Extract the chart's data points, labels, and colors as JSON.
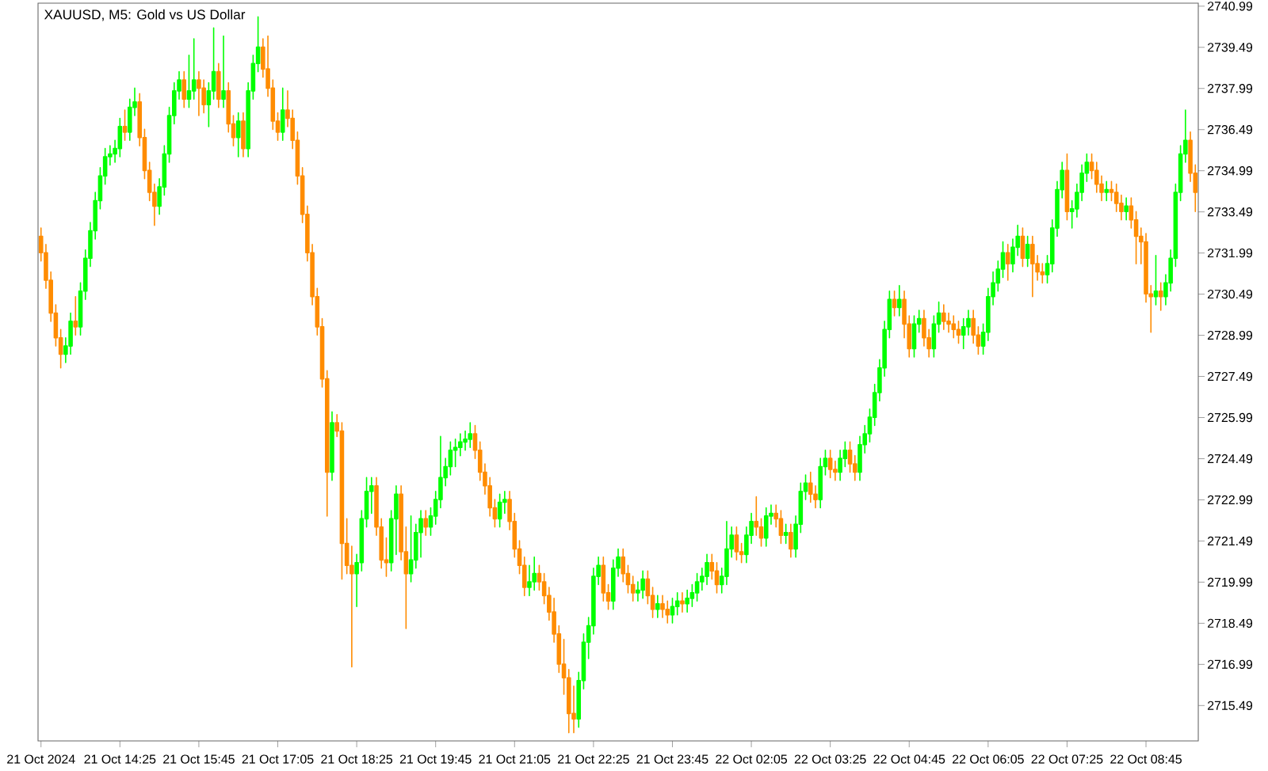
{
  "chart_data": {
    "type": "candlestick",
    "title": "XAUUSD, M5:  Gold vs US Dollar",
    "categories": [
      "21 Oct 2024",
      null,
      null,
      null,
      null,
      null,
      null,
      null,
      null,
      null,
      null,
      null,
      null,
      null,
      null,
      null,
      "21 Oct 14:25",
      null,
      null,
      null,
      null,
      null,
      null,
      null,
      null,
      null,
      null,
      null,
      null,
      null,
      null,
      null,
      "21 Oct 15:45",
      null,
      null,
      null,
      null,
      null,
      null,
      null,
      null,
      null,
      null,
      null,
      null,
      null,
      null,
      null,
      "21 Oct 17:05",
      null,
      null,
      null,
      null,
      null,
      null,
      null,
      null,
      null,
      null,
      null,
      null,
      null,
      null,
      null,
      "21 Oct 18:25",
      null,
      null,
      null,
      null,
      null,
      null,
      null,
      null,
      null,
      null,
      null,
      null,
      null,
      null,
      null,
      "21 Oct 19:45",
      null,
      null,
      null,
      null,
      null,
      null,
      null,
      null,
      null,
      null,
      null,
      null,
      null,
      null,
      null,
      "21 Oct 21:05",
      null,
      null,
      null,
      null,
      null,
      null,
      null,
      null,
      null,
      null,
      null,
      null,
      null,
      null,
      null,
      "21 Oct 22:25",
      null,
      null,
      null,
      null,
      null,
      null,
      null,
      null,
      null,
      null,
      null,
      null,
      null,
      null,
      null,
      "21 Oct 23:45",
      null,
      null,
      null,
      null,
      null,
      null,
      null,
      null,
      null,
      null,
      null,
      null,
      null,
      null,
      null,
      "22 Oct 02:05",
      null,
      null,
      null,
      null,
      null,
      null,
      null,
      null,
      null,
      null,
      null,
      null,
      null,
      null,
      null,
      "22 Oct 03:25",
      null,
      null,
      null,
      null,
      null,
      null,
      null,
      null,
      null,
      null,
      null,
      null,
      null,
      null,
      null,
      "22 Oct 04:45",
      null,
      null,
      null,
      null,
      null,
      null,
      null,
      null,
      null,
      null,
      null,
      null,
      null,
      null,
      null,
      "22 Oct 06:05",
      null,
      null,
      null,
      null,
      null,
      null,
      null,
      null,
      null,
      null,
      null,
      null,
      null,
      null,
      null,
      "22 Oct 07:25",
      null,
      null,
      null,
      null,
      null,
      null,
      null,
      null,
      null,
      null,
      null,
      null,
      null,
      null,
      null,
      "22 Oct 08:45",
      null,
      null,
      null,
      null,
      null,
      null,
      null,
      null,
      null,
      null
    ],
    "ylim": [
      2714.2,
      2741.1
    ],
    "yticks": [
      2715.49,
      2716.99,
      2718.49,
      2719.99,
      2721.49,
      2722.99,
      2724.49,
      2725.99,
      2727.49,
      2728.99,
      2730.49,
      2731.99,
      2733.49,
      2734.99,
      2736.49,
      2737.99,
      2739.49,
      2740.99
    ],
    "ohlc": [
      [
        2732.6,
        2732.9,
        2731.7,
        2732.0
      ],
      [
        2732.0,
        2732.3,
        2730.7,
        2731.0
      ],
      [
        2731.0,
        2731.3,
        2729.5,
        2729.8
      ],
      [
        2729.8,
        2730.1,
        2728.6,
        2728.9
      ],
      [
        2728.9,
        2729.2,
        2727.8,
        2728.3
      ],
      [
        2728.3,
        2728.9,
        2728.0,
        2728.6
      ],
      [
        2728.6,
        2729.8,
        2728.3,
        2729.5
      ],
      [
        2729.5,
        2730.4,
        2729.0,
        2729.3
      ],
      [
        2729.3,
        2730.9,
        2729.0,
        2730.6
      ],
      [
        2730.6,
        2732.1,
        2730.3,
        2731.8
      ],
      [
        2731.8,
        2733.1,
        2731.5,
        2732.8
      ],
      [
        2732.8,
        2734.2,
        2732.5,
        2733.9
      ],
      [
        2733.9,
        2735.1,
        2733.6,
        2734.8
      ],
      [
        2734.8,
        2735.8,
        2734.5,
        2735.5
      ],
      [
        2735.5,
        2735.9,
        2735.2,
        2735.6
      ],
      [
        2735.6,
        2736.1,
        2735.3,
        2735.8
      ],
      [
        2735.8,
        2736.9,
        2735.5,
        2736.6
      ],
      [
        2736.6,
        2737.2,
        2736.1,
        2736.4
      ],
      [
        2736.4,
        2737.6,
        2736.1,
        2737.3
      ],
      [
        2737.3,
        2738.0,
        2737.0,
        2737.5
      ],
      [
        2737.5,
        2737.8,
        2735.9,
        2736.2
      ],
      [
        2736.2,
        2736.5,
        2734.7,
        2735.0
      ],
      [
        2735.0,
        2735.3,
        2733.9,
        2734.2
      ],
      [
        2734.2,
        2734.5,
        2733.0,
        2733.7
      ],
      [
        2733.7,
        2734.7,
        2733.4,
        2734.4
      ],
      [
        2734.4,
        2735.9,
        2734.1,
        2735.6
      ],
      [
        2735.6,
        2737.3,
        2735.3,
        2737.0
      ],
      [
        2737.0,
        2738.2,
        2736.7,
        2737.9
      ],
      [
        2737.9,
        2738.6,
        2737.6,
        2738.3
      ],
      [
        2738.3,
        2738.6,
        2737.3,
        2737.6
      ],
      [
        2737.6,
        2739.2,
        2737.3,
        2737.9
      ],
      [
        2737.9,
        2739.8,
        2737.6,
        2738.3
      ],
      [
        2738.3,
        2738.6,
        2737.0,
        2738.0
      ],
      [
        2738.0,
        2738.3,
        2737.1,
        2737.4
      ],
      [
        2737.4,
        2738.2,
        2736.6,
        2737.9
      ],
      [
        2737.9,
        2740.2,
        2737.6,
        2738.6
      ],
      [
        2738.6,
        2738.9,
        2737.3,
        2737.6
      ],
      [
        2737.6,
        2739.9,
        2737.3,
        2737.9
      ],
      [
        2737.9,
        2738.2,
        2736.4,
        2736.7
      ],
      [
        2736.7,
        2737.0,
        2735.9,
        2736.2
      ],
      [
        2736.2,
        2737.1,
        2735.5,
        2736.8
      ],
      [
        2736.8,
        2737.1,
        2735.5,
        2735.8
      ],
      [
        2735.8,
        2738.2,
        2735.5,
        2737.9
      ],
      [
        2737.9,
        2739.2,
        2737.6,
        2738.9
      ],
      [
        2738.9,
        2740.6,
        2738.6,
        2739.5
      ],
      [
        2739.5,
        2739.8,
        2738.4,
        2738.7
      ],
      [
        2738.7,
        2739.9,
        2737.7,
        2738.0
      ],
      [
        2738.0,
        2738.3,
        2736.5,
        2736.8
      ],
      [
        2736.8,
        2737.1,
        2736.1,
        2736.4
      ],
      [
        2736.4,
        2738.0,
        2736.1,
        2737.2
      ],
      [
        2737.2,
        2737.9,
        2736.6,
        2736.9
      ],
      [
        2736.9,
        2737.2,
        2735.8,
        2736.1
      ],
      [
        2736.1,
        2736.4,
        2734.5,
        2734.8
      ],
      [
        2734.8,
        2735.1,
        2733.1,
        2733.4
      ],
      [
        2733.4,
        2733.7,
        2731.7,
        2732.0
      ],
      [
        2732.0,
        2732.3,
        2730.1,
        2730.4
      ],
      [
        2730.4,
        2730.7,
        2729.0,
        2729.3
      ],
      [
        2729.3,
        2729.6,
        2727.1,
        2727.4
      ],
      [
        2727.4,
        2727.7,
        2722.4,
        2724.0
      ],
      [
        2724.0,
        2726.2,
        2723.7,
        2725.8
      ],
      [
        2725.8,
        2726.1,
        2725.3,
        2725.5
      ],
      [
        2725.5,
        2725.8,
        2720.1,
        2721.4
      ],
      [
        2721.4,
        2722.3,
        2720.3,
        2720.6
      ],
      [
        2720.6,
        2721.3,
        2716.9,
        2720.3
      ],
      [
        2720.3,
        2721.0,
        2719.1,
        2720.7
      ],
      [
        2720.7,
        2722.6,
        2720.4,
        2722.3
      ],
      [
        2722.3,
        2723.8,
        2722.0,
        2723.3
      ],
      [
        2723.3,
        2723.8,
        2722.5,
        2723.5
      ],
      [
        2723.5,
        2723.8,
        2721.7,
        2722.0
      ],
      [
        2722.0,
        2722.3,
        2720.5,
        2720.8
      ],
      [
        2720.8,
        2721.6,
        2720.2,
        2720.7
      ],
      [
        2720.7,
        2722.6,
        2720.4,
        2722.3
      ],
      [
        2722.3,
        2723.5,
        2721.0,
        2723.2
      ],
      [
        2723.2,
        2723.5,
        2720.8,
        2721.1
      ],
      [
        2721.1,
        2722.0,
        2718.3,
        2720.3
      ],
      [
        2720.3,
        2722.4,
        2720.0,
        2720.8
      ],
      [
        2720.8,
        2722.1,
        2720.5,
        2721.8
      ],
      [
        2721.8,
        2722.6,
        2720.9,
        2722.3
      ],
      [
        2722.3,
        2722.6,
        2721.7,
        2722.0
      ],
      [
        2722.0,
        2722.7,
        2721.7,
        2722.4
      ],
      [
        2722.4,
        2723.3,
        2722.1,
        2723.0
      ],
      [
        2723.0,
        2725.3,
        2722.7,
        2723.8
      ],
      [
        2723.8,
        2724.5,
        2723.5,
        2724.2
      ],
      [
        2724.2,
        2725.1,
        2723.9,
        2724.8
      ],
      [
        2724.8,
        2725.2,
        2724.2,
        2724.9
      ],
      [
        2724.9,
        2725.4,
        2724.6,
        2725.1
      ],
      [
        2725.1,
        2725.5,
        2724.8,
        2725.2
      ],
      [
        2725.2,
        2725.8,
        2724.9,
        2725.4
      ],
      [
        2725.4,
        2725.7,
        2724.5,
        2724.8
      ],
      [
        2724.8,
        2725.1,
        2723.7,
        2724.0
      ],
      [
        2724.0,
        2724.3,
        2723.2,
        2723.5
      ],
      [
        2723.5,
        2723.8,
        2722.4,
        2722.7
      ],
      [
        2722.7,
        2723.0,
        2722.0,
        2722.3
      ],
      [
        2722.3,
        2723.2,
        2722.0,
        2722.9
      ],
      [
        2722.9,
        2723.3,
        2722.5,
        2723.0
      ],
      [
        2723.0,
        2723.3,
        2721.9,
        2722.2
      ],
      [
        2722.2,
        2722.5,
        2720.9,
        2721.2
      ],
      [
        2721.2,
        2721.5,
        2720.3,
        2720.6
      ],
      [
        2720.6,
        2720.9,
        2719.5,
        2719.8
      ],
      [
        2719.8,
        2720.6,
        2719.5,
        2720.0
      ],
      [
        2720.0,
        2720.9,
        2719.7,
        2720.3
      ],
      [
        2720.3,
        2720.6,
        2719.7,
        2720.0
      ],
      [
        2720.0,
        2720.3,
        2719.2,
        2719.5
      ],
      [
        2719.5,
        2719.8,
        2718.6,
        2718.9
      ],
      [
        2718.9,
        2719.4,
        2717.8,
        2718.1
      ],
      [
        2718.1,
        2718.4,
        2716.7,
        2717.0
      ],
      [
        2717.0,
        2717.9,
        2715.9,
        2716.5
      ],
      [
        2716.5,
        2716.8,
        2714.5,
        2715.2
      ],
      [
        2715.2,
        2716.2,
        2714.5,
        2715.0
      ],
      [
        2715.0,
        2716.7,
        2714.7,
        2716.4
      ],
      [
        2716.4,
        2718.1,
        2716.1,
        2717.8
      ],
      [
        2717.8,
        2718.7,
        2717.2,
        2718.4
      ],
      [
        2718.4,
        2720.5,
        2718.1,
        2720.2
      ],
      [
        2720.2,
        2720.9,
        2719.9,
        2720.6
      ],
      [
        2720.6,
        2720.9,
        2719.3,
        2719.6
      ],
      [
        2719.6,
        2719.9,
        2719.0,
        2719.3
      ],
      [
        2719.3,
        2720.8,
        2719.0,
        2720.5
      ],
      [
        2720.5,
        2721.2,
        2720.2,
        2720.9
      ],
      [
        2720.9,
        2721.2,
        2720.0,
        2720.3
      ],
      [
        2720.3,
        2720.6,
        2719.6,
        2719.9
      ],
      [
        2719.9,
        2720.2,
        2719.3,
        2719.6
      ],
      [
        2719.6,
        2720.0,
        2719.3,
        2719.7
      ],
      [
        2719.7,
        2720.4,
        2719.4,
        2720.1
      ],
      [
        2720.1,
        2720.4,
        2719.2,
        2719.5
      ],
      [
        2719.5,
        2719.8,
        2718.7,
        2719.0
      ],
      [
        2719.0,
        2719.5,
        2718.7,
        2719.2
      ],
      [
        2719.2,
        2719.5,
        2718.7,
        2719.0
      ],
      [
        2719.0,
        2719.3,
        2718.5,
        2718.8
      ],
      [
        2718.8,
        2719.4,
        2718.5,
        2719.1
      ],
      [
        2719.1,
        2719.6,
        2718.8,
        2719.3
      ],
      [
        2719.3,
        2719.6,
        2718.9,
        2719.2
      ],
      [
        2719.2,
        2719.7,
        2718.9,
        2719.4
      ],
      [
        2719.4,
        2719.9,
        2719.1,
        2719.6
      ],
      [
        2719.6,
        2720.3,
        2719.3,
        2720.0
      ],
      [
        2720.0,
        2720.5,
        2719.7,
        2720.2
      ],
      [
        2720.2,
        2721.0,
        2719.9,
        2720.7
      ],
      [
        2720.7,
        2721.0,
        2720.1,
        2720.4
      ],
      [
        2720.4,
        2720.7,
        2719.6,
        2719.9
      ],
      [
        2719.9,
        2720.5,
        2719.6,
        2720.2
      ],
      [
        2720.2,
        2722.2,
        2719.9,
        2721.2
      ],
      [
        2721.2,
        2722.0,
        2720.9,
        2721.7
      ],
      [
        2721.7,
        2722.0,
        2720.8,
        2721.1
      ],
      [
        2721.1,
        2721.4,
        2720.7,
        2721.0
      ],
      [
        2721.0,
        2722.0,
        2720.7,
        2721.7
      ],
      [
        2721.7,
        2722.5,
        2721.4,
        2722.2
      ],
      [
        2722.2,
        2723.1,
        2721.7,
        2722.0
      ],
      [
        2722.0,
        2722.3,
        2721.3,
        2721.6
      ],
      [
        2721.6,
        2722.7,
        2721.3,
        2722.4
      ],
      [
        2722.4,
        2722.8,
        2722.1,
        2722.5
      ],
      [
        2722.5,
        2722.8,
        2722.0,
        2722.3
      ],
      [
        2722.3,
        2722.6,
        2721.4,
        2721.7
      ],
      [
        2721.7,
        2722.1,
        2721.4,
        2721.8
      ],
      [
        2721.8,
        2722.1,
        2720.9,
        2721.2
      ],
      [
        2721.2,
        2722.4,
        2720.9,
        2722.1
      ],
      [
        2722.1,
        2723.6,
        2721.8,
        2723.3
      ],
      [
        2723.3,
        2723.9,
        2723.0,
        2723.6
      ],
      [
        2723.6,
        2724.0,
        2722.9,
        2723.2
      ],
      [
        2723.2,
        2723.5,
        2722.7,
        2723.0
      ],
      [
        2723.0,
        2724.5,
        2722.7,
        2724.2
      ],
      [
        2724.2,
        2724.8,
        2723.9,
        2724.5
      ],
      [
        2724.5,
        2724.8,
        2723.8,
        2724.1
      ],
      [
        2724.1,
        2724.4,
        2723.7,
        2724.0
      ],
      [
        2724.0,
        2724.8,
        2723.7,
        2724.5
      ],
      [
        2724.5,
        2725.1,
        2724.2,
        2724.8
      ],
      [
        2724.8,
        2725.1,
        2724.0,
        2724.3
      ],
      [
        2724.3,
        2724.6,
        2723.7,
        2724.0
      ],
      [
        2724.0,
        2725.3,
        2723.7,
        2725.0
      ],
      [
        2725.0,
        2725.7,
        2724.7,
        2725.4
      ],
      [
        2725.4,
        2726.3,
        2725.1,
        2726.0
      ],
      [
        2726.0,
        2727.2,
        2725.7,
        2726.9
      ],
      [
        2726.9,
        2728.1,
        2726.6,
        2727.8
      ],
      [
        2727.8,
        2729.5,
        2727.5,
        2729.2
      ],
      [
        2729.2,
        2730.6,
        2728.9,
        2730.3
      ],
      [
        2730.3,
        2730.6,
        2729.7,
        2730.0
      ],
      [
        2730.0,
        2730.8,
        2729.7,
        2730.3
      ],
      [
        2730.3,
        2730.6,
        2728.9,
        2729.4
      ],
      [
        2729.4,
        2729.7,
        2728.2,
        2728.5
      ],
      [
        2728.5,
        2729.7,
        2728.2,
        2729.4
      ],
      [
        2729.4,
        2729.9,
        2729.1,
        2729.6
      ],
      [
        2729.6,
        2729.9,
        2728.6,
        2728.9
      ],
      [
        2728.9,
        2729.2,
        2728.2,
        2728.5
      ],
      [
        2728.5,
        2729.7,
        2728.2,
        2729.4
      ],
      [
        2729.4,
        2730.2,
        2729.1,
        2729.8
      ],
      [
        2729.8,
        2730.1,
        2729.2,
        2729.5
      ],
      [
        2729.5,
        2729.8,
        2729.1,
        2729.4
      ],
      [
        2729.4,
        2729.7,
        2728.9,
        2729.2
      ],
      [
        2729.2,
        2729.5,
        2728.7,
        2729.0
      ],
      [
        2729.0,
        2729.6,
        2728.5,
        2729.3
      ],
      [
        2729.3,
        2729.9,
        2729.0,
        2729.6
      ],
      [
        2729.6,
        2729.9,
        2728.7,
        2729.0
      ],
      [
        2729.0,
        2729.3,
        2728.3,
        2728.6
      ],
      [
        2728.6,
        2729.4,
        2728.3,
        2729.1
      ],
      [
        2729.1,
        2730.7,
        2728.8,
        2730.4
      ],
      [
        2730.4,
        2731.3,
        2730.1,
        2730.9
      ],
      [
        2730.9,
        2731.7,
        2730.6,
        2731.4
      ],
      [
        2731.4,
        2732.4,
        2731.1,
        2732.0
      ],
      [
        2732.0,
        2732.3,
        2731.0,
        2731.6
      ],
      [
        2731.6,
        2732.5,
        2731.3,
        2732.2
      ],
      [
        2732.2,
        2733.0,
        2731.9,
        2732.6
      ],
      [
        2732.6,
        2732.9,
        2731.5,
        2731.8
      ],
      [
        2731.8,
        2732.6,
        2731.5,
        2732.3
      ],
      [
        2732.3,
        2732.6,
        2730.4,
        2731.6
      ],
      [
        2731.6,
        2731.9,
        2731.0,
        2731.3
      ],
      [
        2731.3,
        2731.6,
        2730.9,
        2731.2
      ],
      [
        2731.2,
        2731.9,
        2730.9,
        2731.6
      ],
      [
        2731.6,
        2733.2,
        2731.3,
        2732.9
      ],
      [
        2732.9,
        2734.6,
        2732.6,
        2734.3
      ],
      [
        2734.3,
        2735.3,
        2734.0,
        2735.0
      ],
      [
        2735.0,
        2735.6,
        2733.2,
        2733.5
      ],
      [
        2733.5,
        2733.9,
        2732.9,
        2733.6
      ],
      [
        2733.6,
        2734.5,
        2733.3,
        2734.2
      ],
      [
        2734.2,
        2735.2,
        2733.9,
        2734.9
      ],
      [
        2734.9,
        2735.6,
        2734.6,
        2735.3
      ],
      [
        2735.3,
        2735.6,
        2734.7,
        2735.0
      ],
      [
        2735.0,
        2735.3,
        2734.2,
        2734.5
      ],
      [
        2734.5,
        2734.8,
        2733.9,
        2734.2
      ],
      [
        2734.2,
        2734.6,
        2733.9,
        2734.3
      ],
      [
        2734.3,
        2734.6,
        2733.9,
        2734.2
      ],
      [
        2734.2,
        2734.5,
        2733.5,
        2733.8
      ],
      [
        2733.8,
        2734.1,
        2733.2,
        2733.5
      ],
      [
        2733.5,
        2734.0,
        2733.2,
        2733.7
      ],
      [
        2733.7,
        2734.0,
        2732.9,
        2733.2
      ],
      [
        2733.2,
        2733.5,
        2731.6,
        2732.6
      ],
      [
        2732.6,
        2732.9,
        2731.6,
        2732.4
      ],
      [
        2732.4,
        2732.7,
        2730.2,
        2730.5
      ],
      [
        2730.5,
        2730.8,
        2729.1,
        2730.4
      ],
      [
        2730.4,
        2731.9,
        2730.1,
        2730.6
      ],
      [
        2730.6,
        2730.9,
        2729.9,
        2730.4
      ],
      [
        2730.4,
        2731.2,
        2730.1,
        2730.9
      ],
      [
        2730.9,
        2732.1,
        2730.6,
        2731.8
      ],
      [
        2731.8,
        2734.5,
        2731.5,
        2734.2
      ],
      [
        2734.2,
        2735.9,
        2733.9,
        2735.6
      ],
      [
        2735.6,
        2737.2,
        2735.3,
        2736.1
      ],
      [
        2736.1,
        2736.4,
        2734.6,
        2734.9
      ],
      [
        2734.9,
        2735.2,
        2733.5,
        2734.2
      ]
    ],
    "colors": [
      "#ff8c00",
      "#ff8c00",
      "#ff8c00",
      "#ff8c00",
      "#ff8c00",
      "#00ff00",
      "#00ff00",
      "#ff8c00",
      "#00ff00",
      "#00ff00",
      "#00ff00",
      "#00ff00",
      "#00ff00",
      "#00ff00",
      "#00ff00",
      "#00ff00",
      "#00ff00",
      "#ff8c00",
      "#00ff00",
      "#00ff00",
      "#ff8c00",
      "#ff8c00",
      "#ff8c00",
      "#ff8c00",
      "#00ff00",
      "#00ff00",
      "#00ff00",
      "#00ff00",
      "#00ff00",
      "#ff8c00",
      "#00ff00",
      "#00ff00",
      "#ff8c00",
      "#ff8c00",
      "#00ff00",
      "#00ff00",
      "#ff8c00",
      "#00ff00",
      "#ff8c00",
      "#ff8c00",
      "#00ff00",
      "#ff8c00",
      "#00ff00",
      "#00ff00",
      "#00ff00",
      "#ff8c00",
      "#ff8c00",
      "#ff8c00",
      "#ff8c00",
      "#00ff00",
      "#ff8c00",
      "#ff8c00",
      "#ff8c00",
      "#ff8c00",
      "#ff8c00",
      "#ff8c00",
      "#ff8c00",
      "#ff8c00",
      "#ff8c00",
      "#00ff00",
      "#ff8c00",
      "#ff8c00",
      "#ff8c00",
      "#ff8c00",
      "#00ff00",
      "#00ff00",
      "#00ff00",
      "#00ff00",
      "#ff8c00",
      "#ff8c00",
      "#ff8c00",
      "#00ff00",
      "#00ff00",
      "#ff8c00",
      "#ff8c00",
      "#00ff00",
      "#00ff00",
      "#00ff00",
      "#ff8c00",
      "#00ff00",
      "#00ff00",
      "#00ff00",
      "#00ff00",
      "#00ff00",
      "#00ff00",
      "#00ff00",
      "#00ff00",
      "#00ff00",
      "#ff8c00",
      "#ff8c00",
      "#ff8c00",
      "#ff8c00",
      "#ff8c00",
      "#00ff00",
      "#00ff00",
      "#ff8c00",
      "#ff8c00",
      "#ff8c00",
      "#ff8c00",
      "#00ff00",
      "#00ff00",
      "#ff8c00",
      "#ff8c00",
      "#ff8c00",
      "#ff8c00",
      "#ff8c00",
      "#ff8c00",
      "#ff8c00",
      "#ff8c00",
      "#00ff00",
      "#00ff00",
      "#00ff00",
      "#00ff00",
      "#00ff00",
      "#ff8c00",
      "#ff8c00",
      "#00ff00",
      "#00ff00",
      "#ff8c00",
      "#ff8c00",
      "#ff8c00",
      "#00ff00",
      "#00ff00",
      "#ff8c00",
      "#ff8c00",
      "#00ff00",
      "#ff8c00",
      "#ff8c00",
      "#00ff00",
      "#00ff00",
      "#ff8c00",
      "#00ff00",
      "#00ff00",
      "#00ff00",
      "#00ff00",
      "#00ff00",
      "#ff8c00",
      "#ff8c00",
      "#00ff00",
      "#00ff00",
      "#00ff00",
      "#ff8c00",
      "#ff8c00",
      "#00ff00",
      "#00ff00",
      "#ff8c00",
      "#ff8c00",
      "#00ff00",
      "#00ff00",
      "#ff8c00",
      "#ff8c00",
      "#00ff00",
      "#ff8c00",
      "#00ff00",
      "#00ff00",
      "#00ff00",
      "#ff8c00",
      "#ff8c00",
      "#00ff00",
      "#00ff00",
      "#ff8c00",
      "#ff8c00",
      "#00ff00",
      "#00ff00",
      "#ff8c00",
      "#ff8c00",
      "#00ff00",
      "#00ff00",
      "#00ff00",
      "#00ff00",
      "#00ff00",
      "#00ff00",
      "#00ff00",
      "#ff8c00",
      "#00ff00",
      "#ff8c00",
      "#ff8c00",
      "#00ff00",
      "#00ff00",
      "#ff8c00",
      "#ff8c00",
      "#00ff00",
      "#00ff00",
      "#ff8c00",
      "#ff8c00",
      "#ff8c00",
      "#ff8c00",
      "#00ff00",
      "#00ff00",
      "#ff8c00",
      "#ff8c00",
      "#00ff00",
      "#00ff00",
      "#00ff00",
      "#00ff00",
      "#00ff00",
      "#ff8c00",
      "#00ff00",
      "#00ff00",
      "#ff8c00",
      "#00ff00",
      "#ff8c00",
      "#ff8c00",
      "#ff8c00",
      "#00ff00",
      "#00ff00",
      "#00ff00",
      "#00ff00",
      "#ff8c00",
      "#00ff00",
      "#00ff00",
      "#00ff00",
      "#00ff00",
      "#ff8c00",
      "#ff8c00",
      "#ff8c00",
      "#00ff00",
      "#ff8c00",
      "#ff8c00",
      "#ff8c00",
      "#00ff00",
      "#ff8c00",
      "#ff8c00",
      "#ff8c00",
      "#ff8c00",
      "#ff8c00",
      "#00ff00",
      "#ff8c00",
      "#00ff00",
      "#00ff00",
      "#00ff00",
      "#00ff00",
      "#00ff00",
      "#ff8c00",
      "#ff8c00"
    ]
  }
}
